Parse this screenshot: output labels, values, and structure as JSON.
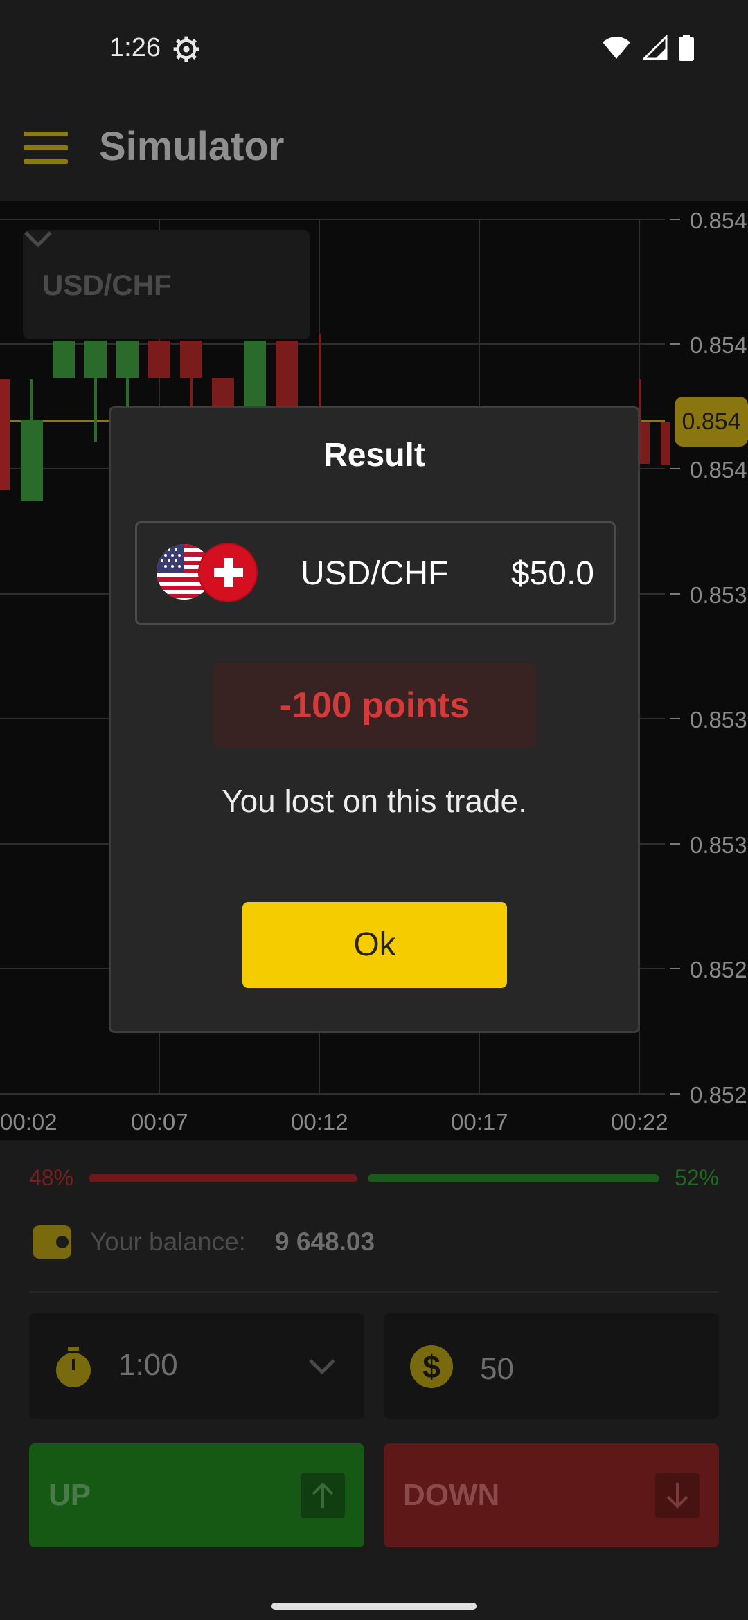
{
  "status_bar": {
    "time": "1:26",
    "icons": [
      "gear-icon",
      "wifi-icon",
      "signal-icon",
      "battery-icon"
    ]
  },
  "app_bar": {
    "title": "Simulator",
    "menu_icon": "menu-icon"
  },
  "chart": {
    "pair_selector": "USD/CHF",
    "current_price": "0.854",
    "y_ticks": [
      "0.854",
      "0.854",
      "0.854",
      "0.853",
      "0.853",
      "0.853",
      "0.852",
      "0.852"
    ],
    "x_ticks": [
      "00:02",
      "00:07",
      "00:12",
      "00:17",
      "00:22"
    ]
  },
  "sentiment": {
    "down_pct": "48%",
    "up_pct": "52%",
    "down_value": 48,
    "up_value": 52
  },
  "balance": {
    "label": "Your balance:",
    "value": "9 648.03"
  },
  "trade_form": {
    "duration": "1:00",
    "amount": "50",
    "currency_symbol": "$",
    "up_label": "UP",
    "down_label": "DOWN"
  },
  "dialog": {
    "title": "Result",
    "pair": "USD/CHF",
    "amount": "$50.0",
    "points": "-100 points",
    "message": "You lost on this trade.",
    "ok_label": "Ok"
  },
  "colors": {
    "accent": "#f5cc00",
    "loss": "#d43a3a",
    "up": "#155915",
    "down": "#5e1818"
  }
}
